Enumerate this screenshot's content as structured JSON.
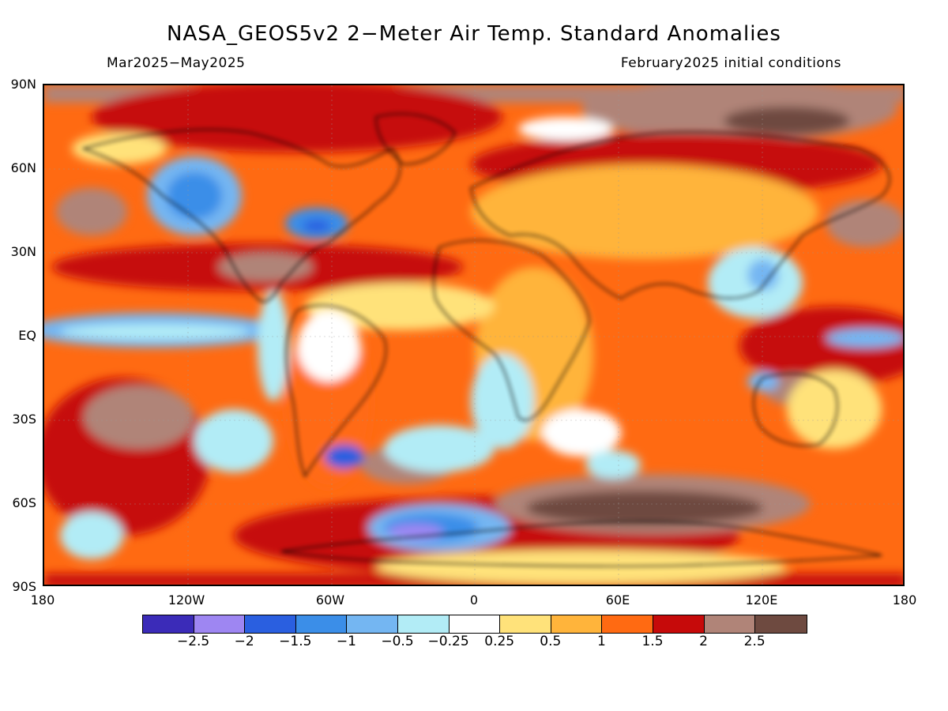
{
  "title": "NASA_GEOS5v2 2−Meter Air Temp. Standard Anomalies",
  "subtitle_left": "Mar2025−May2025",
  "subtitle_right": "February2025 initial conditions",
  "lat_labels": [
    "90N",
    "60N",
    "30N",
    "EQ",
    "30S",
    "60S",
    "90S"
  ],
  "lon_labels": [
    "180",
    "120W",
    "60W",
    "0",
    "60E",
    "120E",
    "180"
  ],
  "colorbar": {
    "colors": [
      "#3b2bb8",
      "#9e86f2",
      "#2a5fe0",
      "#3b8ee8",
      "#74b6f2",
      "#b2ecf6",
      "#ffffff",
      "#ffe27a",
      "#ffb43b",
      "#ff6a12",
      "#c60a0a",
      "#b08478",
      "#6e4a40"
    ],
    "labels": [
      "−2.5",
      "−2",
      "−1.5",
      "−1",
      "−0.5",
      "−0.25",
      "0.25",
      "0.5",
      "1",
      "1.5",
      "2",
      "2.5"
    ]
  },
  "map": {
    "projection": "cylindrical-equidistant",
    "lat_range": [
      -90,
      90
    ],
    "lon_range": [
      -180,
      180
    ],
    "grid": true,
    "variable": "2-meter air temperature standard anomaly",
    "dominant_sign": "positive"
  }
}
